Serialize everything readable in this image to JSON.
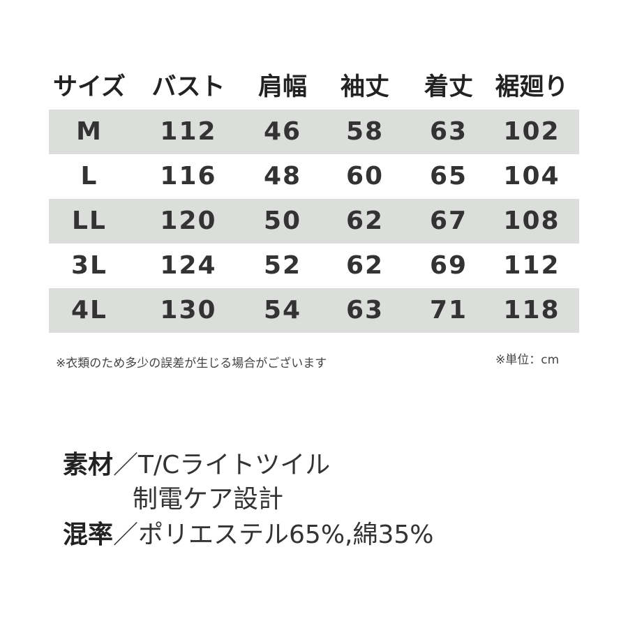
{
  "table": {
    "header": [
      "サイズ",
      "バスト",
      "肩幅",
      "袖丈",
      "着丈",
      "裾廻り"
    ],
    "rows": [
      [
        "M",
        112,
        46,
        58,
        63,
        102
      ],
      [
        "L",
        116,
        48,
        60,
        65,
        104
      ],
      [
        "LL",
        120,
        50,
        62,
        67,
        108
      ],
      [
        "3L",
        124,
        52,
        62,
        69,
        112
      ],
      [
        "4L",
        130,
        54,
        63,
        71,
        118
      ]
    ]
  },
  "notes": {
    "left": "※衣類のため多少の誤差が生じる場合がございます",
    "right": "※単位：cm"
  },
  "material": {
    "lines": [
      {
        "label": "素材",
        "text": "／T/Cライトツイル"
      },
      {
        "text": "制電ケア設計"
      },
      {
        "label": "混率",
        "text": "／ポリエステル65%,綿35%"
      }
    ]
  }
}
